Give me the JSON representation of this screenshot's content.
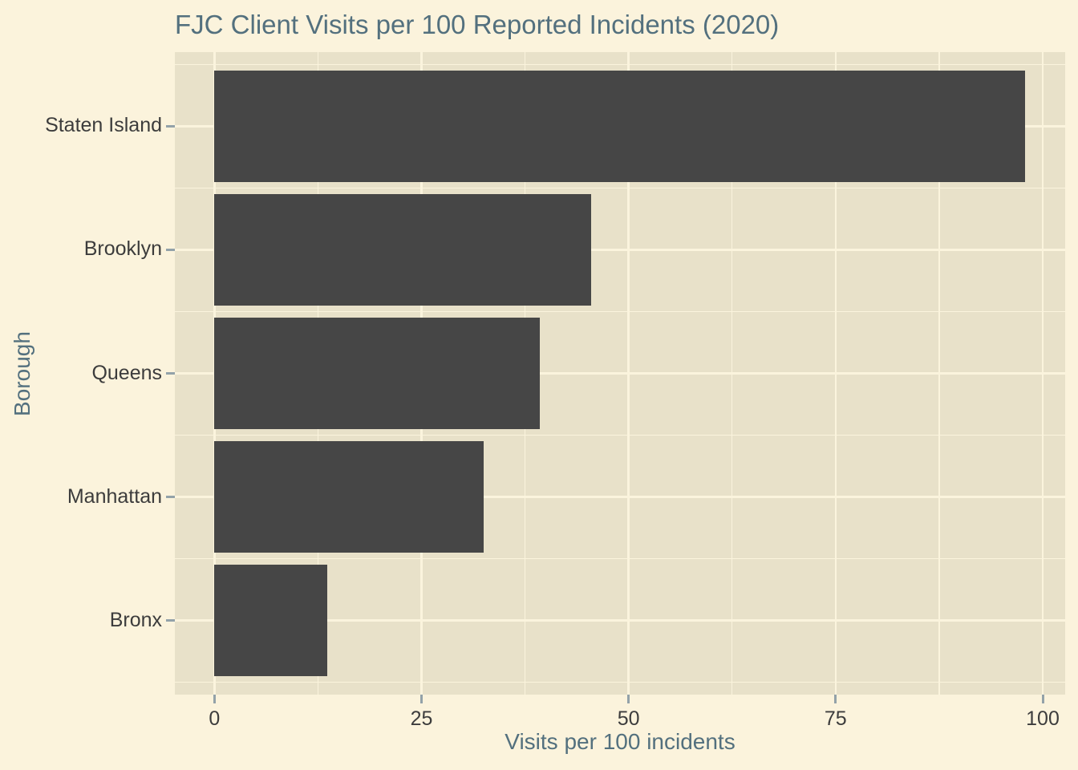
{
  "chart_data": {
    "type": "bar",
    "orientation": "horizontal",
    "title": "FJC Client Visits per 100 Reported Incidents (2020)",
    "xlabel": "Visits per 100 incidents",
    "ylabel": "Borough",
    "categories": [
      "Staten Island",
      "Brooklyn",
      "Queens",
      "Manhattan",
      "Bronx"
    ],
    "values": [
      97.9,
      45.5,
      39.3,
      32.5,
      13.6
    ],
    "xlim": [
      0,
      100
    ],
    "x_ticks": [
      0,
      25,
      50,
      75,
      100
    ],
    "x_tick_labels": [
      "0",
      "25",
      "50",
      "75",
      "100"
    ],
    "x_minor_ticks": [
      12.5,
      37.5,
      62.5,
      87.5
    ],
    "grid": true,
    "legend": false,
    "colors": {
      "background": "#fbf3dc",
      "panel": "#e8e1c9",
      "bar": "#464646",
      "gridline": "#fbf4dd",
      "title_text": "#53707e",
      "axis_title_text": "#53707e",
      "tick_label_text": "#3c3c3c",
      "tick_mark": "#93a2a9"
    }
  }
}
